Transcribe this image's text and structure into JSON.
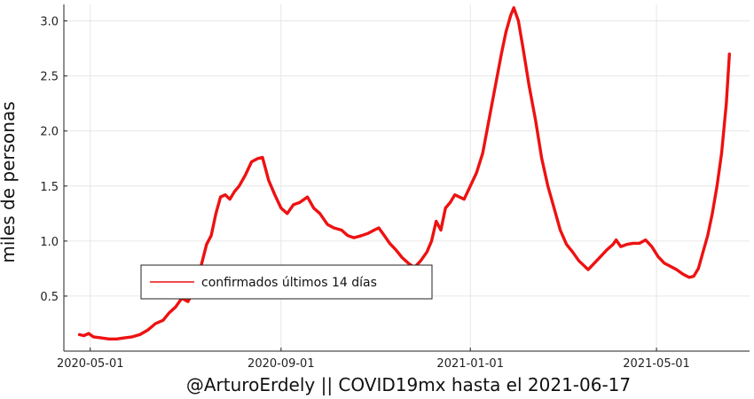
{
  "chart_data": {
    "type": "line",
    "xlabel": "@ArturoErdely || COVID19mx hasta el 2021-06-17",
    "ylabel": "miles de personas",
    "xlim": [
      "2020-04-14",
      "2021-06-30"
    ],
    "ylim": [
      0.0,
      3.15
    ],
    "x_ticks": [
      {
        "date": "2020-05-01",
        "label": "2020-05-01"
      },
      {
        "date": "2020-09-01",
        "label": "2020-09-01"
      },
      {
        "date": "2021-01-01",
        "label": "2021-01-01"
      },
      {
        "date": "2021-05-01",
        "label": "2021-05-01"
      }
    ],
    "y_ticks": [
      {
        "value": 0.5,
        "label": "0.5"
      },
      {
        "value": 1.0,
        "label": "1.0"
      },
      {
        "value": 1.5,
        "label": "1.5"
      },
      {
        "value": 2.0,
        "label": "2.0"
      },
      {
        "value": 2.5,
        "label": "2.5"
      },
      {
        "value": 3.0,
        "label": "3.0"
      }
    ],
    "grid": true,
    "legend_position": "lower-left",
    "series": [
      {
        "name": "confirmados últimos 14 días",
        "color": "#ee1111",
        "points": [
          [
            "2020-04-24",
            0.15
          ],
          [
            "2020-04-27",
            0.14
          ],
          [
            "2020-04-30",
            0.16
          ],
          [
            "2020-05-03",
            0.13
          ],
          [
            "2020-05-08",
            0.12
          ],
          [
            "2020-05-13",
            0.11
          ],
          [
            "2020-05-18",
            0.11
          ],
          [
            "2020-05-23",
            0.12
          ],
          [
            "2020-05-28",
            0.13
          ],
          [
            "2020-06-02",
            0.15
          ],
          [
            "2020-06-07",
            0.19
          ],
          [
            "2020-06-12",
            0.25
          ],
          [
            "2020-06-17",
            0.28
          ],
          [
            "2020-06-21",
            0.35
          ],
          [
            "2020-06-25",
            0.4
          ],
          [
            "2020-06-29",
            0.48
          ],
          [
            "2020-07-03",
            0.45
          ],
          [
            "2020-07-07",
            0.55
          ],
          [
            "2020-07-11",
            0.75
          ],
          [
            "2020-07-15",
            0.97
          ],
          [
            "2020-07-18",
            1.05
          ],
          [
            "2020-07-21",
            1.25
          ],
          [
            "2020-07-24",
            1.4
          ],
          [
            "2020-07-27",
            1.42
          ],
          [
            "2020-07-30",
            1.38
          ],
          [
            "2020-08-02",
            1.45
          ],
          [
            "2020-08-05",
            1.5
          ],
          [
            "2020-08-09",
            1.6
          ],
          [
            "2020-08-13",
            1.72
          ],
          [
            "2020-08-17",
            1.75
          ],
          [
            "2020-08-20",
            1.76
          ],
          [
            "2020-08-24",
            1.55
          ],
          [
            "2020-08-28",
            1.42
          ],
          [
            "2020-09-01",
            1.3
          ],
          [
            "2020-09-05",
            1.25
          ],
          [
            "2020-09-09",
            1.33
          ],
          [
            "2020-09-13",
            1.35
          ],
          [
            "2020-09-18",
            1.4
          ],
          [
            "2020-09-22",
            1.3
          ],
          [
            "2020-09-26",
            1.25
          ],
          [
            "2020-10-01",
            1.15
          ],
          [
            "2020-10-05",
            1.12
          ],
          [
            "2020-10-10",
            1.1
          ],
          [
            "2020-10-14",
            1.05
          ],
          [
            "2020-10-18",
            1.03
          ],
          [
            "2020-10-23",
            1.05
          ],
          [
            "2020-10-27",
            1.07
          ],
          [
            "2020-10-31",
            1.1
          ],
          [
            "2020-11-03",
            1.12
          ],
          [
            "2020-11-06",
            1.06
          ],
          [
            "2020-11-10",
            0.98
          ],
          [
            "2020-11-14",
            0.92
          ],
          [
            "2020-11-18",
            0.85
          ],
          [
            "2020-11-22",
            0.8
          ],
          [
            "2020-11-26",
            0.76
          ],
          [
            "2020-11-30",
            0.82
          ],
          [
            "2020-12-04",
            0.9
          ],
          [
            "2020-12-07",
            1.0
          ],
          [
            "2020-12-10",
            1.18
          ],
          [
            "2020-12-13",
            1.1
          ],
          [
            "2020-12-16",
            1.3
          ],
          [
            "2020-12-19",
            1.35
          ],
          [
            "2020-12-22",
            1.42
          ],
          [
            "2020-12-25",
            1.4
          ],
          [
            "2020-12-28",
            1.38
          ],
          [
            "2021-01-01",
            1.5
          ],
          [
            "2021-01-05",
            1.62
          ],
          [
            "2021-01-09",
            1.8
          ],
          [
            "2021-01-13",
            2.1
          ],
          [
            "2021-01-17",
            2.4
          ],
          [
            "2021-01-21",
            2.7
          ],
          [
            "2021-01-24",
            2.9
          ],
          [
            "2021-01-27",
            3.05
          ],
          [
            "2021-01-29",
            3.12
          ],
          [
            "2021-02-01",
            3.0
          ],
          [
            "2021-02-04",
            2.75
          ],
          [
            "2021-02-08",
            2.4
          ],
          [
            "2021-02-12",
            2.1
          ],
          [
            "2021-02-16",
            1.75
          ],
          [
            "2021-02-20",
            1.5
          ],
          [
            "2021-02-24",
            1.3
          ],
          [
            "2021-02-28",
            1.1
          ],
          [
            "2021-03-04",
            0.97
          ],
          [
            "2021-03-08",
            0.9
          ],
          [
            "2021-03-12",
            0.82
          ],
          [
            "2021-03-15",
            0.78
          ],
          [
            "2021-03-18",
            0.74
          ],
          [
            "2021-03-22",
            0.8
          ],
          [
            "2021-03-26",
            0.86
          ],
          [
            "2021-03-30",
            0.92
          ],
          [
            "2021-04-03",
            0.97
          ],
          [
            "2021-04-05",
            1.01
          ],
          [
            "2021-04-08",
            0.95
          ],
          [
            "2021-04-12",
            0.97
          ],
          [
            "2021-04-16",
            0.98
          ],
          [
            "2021-04-20",
            0.98
          ],
          [
            "2021-04-24",
            1.01
          ],
          [
            "2021-04-28",
            0.95
          ],
          [
            "2021-05-02",
            0.86
          ],
          [
            "2021-05-06",
            0.8
          ],
          [
            "2021-05-10",
            0.77
          ],
          [
            "2021-05-14",
            0.74
          ],
          [
            "2021-05-18",
            0.7
          ],
          [
            "2021-05-22",
            0.67
          ],
          [
            "2021-05-25",
            0.68
          ],
          [
            "2021-05-28",
            0.75
          ],
          [
            "2021-05-31",
            0.9
          ],
          [
            "2021-06-03",
            1.05
          ],
          [
            "2021-06-06",
            1.25
          ],
          [
            "2021-06-09",
            1.5
          ],
          [
            "2021-06-12",
            1.8
          ],
          [
            "2021-06-15",
            2.25
          ],
          [
            "2021-06-17",
            2.7
          ]
        ]
      }
    ]
  }
}
